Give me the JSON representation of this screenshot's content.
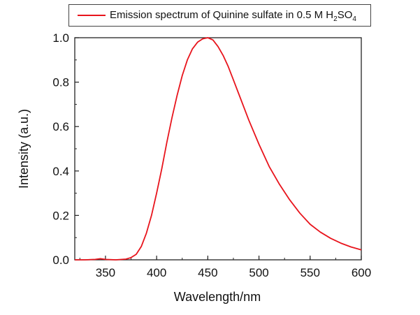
{
  "chart_data": {
    "type": "line",
    "title": "",
    "xlabel": "Wavelength/nm",
    "ylabel": "Intensity (a.u.)",
    "xlim": [
      320,
      600
    ],
    "ylim": [
      0,
      1.0
    ],
    "xticks": [
      350,
      400,
      450,
      500,
      550,
      600
    ],
    "yticks": [
      0.0,
      0.2,
      0.4,
      0.6,
      0.8,
      1.0
    ],
    "ytick_labels": [
      "0.0",
      "0.2",
      "0.4",
      "0.6",
      "0.8",
      "1.0"
    ],
    "grid": false,
    "legend_position": "top",
    "series": [
      {
        "name": "Emission spectrum of Quinine sulfate in 0.5 M H2SO4",
        "color": "#e8141c",
        "x": [
          320,
          330,
          340,
          345,
          350,
          360,
          370,
          375,
          380,
          385,
          390,
          395,
          400,
          405,
          410,
          415,
          420,
          425,
          430,
          435,
          440,
          445,
          450,
          455,
          460,
          465,
          470,
          475,
          480,
          485,
          490,
          500,
          510,
          520,
          530,
          540,
          550,
          560,
          570,
          580,
          590,
          600
        ],
        "y": [
          0.0,
          0.0,
          0.002,
          0.005,
          0.002,
          0.0,
          0.003,
          0.01,
          0.025,
          0.06,
          0.12,
          0.2,
          0.3,
          0.41,
          0.53,
          0.64,
          0.74,
          0.83,
          0.9,
          0.95,
          0.98,
          0.995,
          1.0,
          0.99,
          0.96,
          0.92,
          0.87,
          0.81,
          0.75,
          0.69,
          0.63,
          0.52,
          0.42,
          0.34,
          0.27,
          0.21,
          0.16,
          0.125,
          0.097,
          0.075,
          0.058,
          0.045
        ]
      }
    ]
  },
  "legend": {
    "label_main": "Emission spectrum of Quinine sulfate in 0.5 M H",
    "sub1": "2",
    "label_mid": "SO",
    "sub2": "4"
  }
}
